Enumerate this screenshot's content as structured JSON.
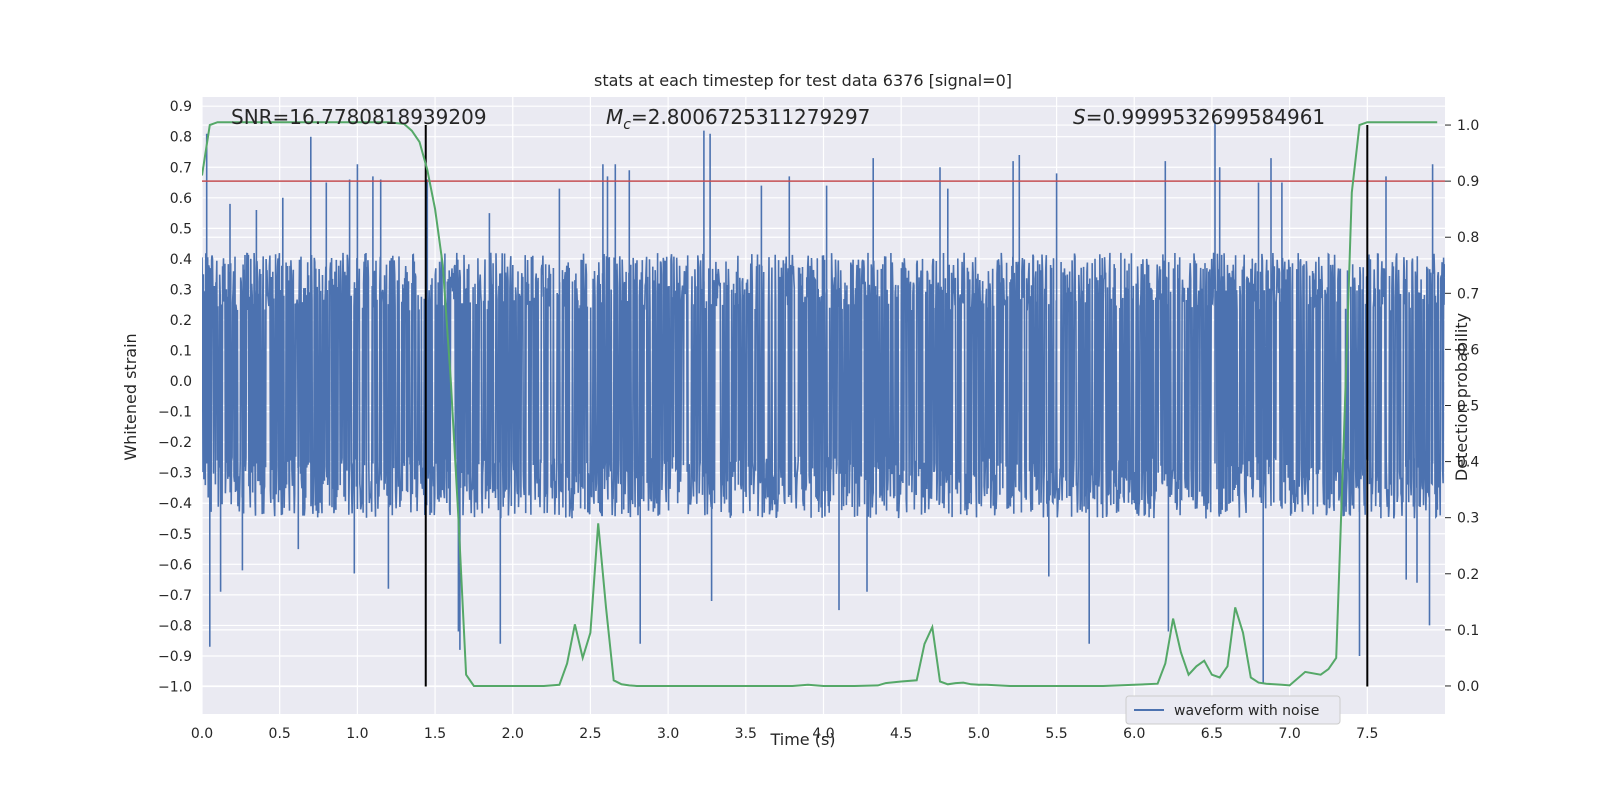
{
  "chart_data": {
    "type": "line",
    "title": "stats at each timestep for test data 6376 [signal=0]",
    "xlabel": "Time (s)",
    "ylabel_left": "Whitened strain",
    "ylabel_right": "Detection probability",
    "xlim": [
      0.0,
      8.0
    ],
    "ylim_left": [
      -1.09,
      0.93
    ],
    "ylim_right": [
      -0.05,
      1.05
    ],
    "x_ticks": [
      0.0,
      0.5,
      1.0,
      1.5,
      2.0,
      2.5,
      3.0,
      3.5,
      4.0,
      4.5,
      5.0,
      5.5,
      6.0,
      6.5,
      7.0,
      7.5
    ],
    "x_tick_labels": [
      "0.0",
      "0.5",
      "1.0",
      "1.5",
      "2.0",
      "2.5",
      "3.0",
      "3.5",
      "4.0",
      "4.5",
      "5.0",
      "5.5",
      "6.0",
      "6.5",
      "7.0",
      "7.5"
    ],
    "y_left_ticks": [
      0.9,
      0.8,
      0.7,
      0.6,
      0.5,
      0.4,
      0.3,
      0.2,
      0.1,
      0.0,
      -0.1,
      -0.2,
      -0.3,
      -0.4,
      -0.5,
      -0.6,
      -0.7,
      -0.8,
      -0.9,
      -1.0
    ],
    "y_left_tick_labels": [
      "0.9",
      "0.8",
      "0.7",
      "0.6",
      "0.5",
      "0.4",
      "0.3",
      "0.2",
      "0.1",
      "0.0",
      "−0.1",
      "−0.2",
      "−0.3",
      "−0.4",
      "−0.5",
      "−0.6",
      "−0.7",
      "−0.8",
      "−0.9",
      "−1.0"
    ],
    "y_right_ticks": [
      1.0,
      0.9,
      0.8,
      0.7,
      0.6,
      0.5,
      0.4,
      0.3,
      0.2,
      0.1,
      0.0
    ],
    "y_right_tick_labels": [
      "1.0",
      "0.9",
      "0.8",
      "0.7",
      "0.6",
      "0.5",
      "0.4",
      "0.3",
      "0.2",
      "0.1",
      "0.0"
    ],
    "annotations": {
      "snr": "SNR=16.7780818939209",
      "mc_symbol": "M",
      "mc_sub": "c",
      "mc_value": "=2.8006725311279297",
      "s_symbol": "S",
      "s_value": "=0.9999532699584961"
    },
    "threshold_right": 0.9,
    "vertical_lines_x": [
      1.44,
      7.5
    ],
    "vertical_lines_ymax_right": 1.0,
    "waveform": {
      "name": "waveform with noise",
      "envelope_upper": 0.42,
      "envelope_lower": -0.45,
      "spikes": [
        {
          "x": 0.03,
          "y": 0.81
        },
        {
          "x": 0.05,
          "y": -0.87
        },
        {
          "x": 0.12,
          "y": -0.69
        },
        {
          "x": 0.18,
          "y": 0.58
        },
        {
          "x": 0.26,
          "y": -0.62
        },
        {
          "x": 0.35,
          "y": 0.56
        },
        {
          "x": 0.52,
          "y": 0.6
        },
        {
          "x": 0.62,
          "y": -0.55
        },
        {
          "x": 0.7,
          "y": 0.8
        },
        {
          "x": 0.8,
          "y": 0.65
        },
        {
          "x": 0.95,
          "y": 0.66
        },
        {
          "x": 0.98,
          "y": -0.63
        },
        {
          "x": 1.0,
          "y": 0.71
        },
        {
          "x": 1.1,
          "y": 0.67
        },
        {
          "x": 1.15,
          "y": 0.66
        },
        {
          "x": 1.2,
          "y": -0.68
        },
        {
          "x": 1.45,
          "y": 0.66
        },
        {
          "x": 1.65,
          "y": -0.82
        },
        {
          "x": 1.66,
          "y": -0.88
        },
        {
          "x": 1.85,
          "y": 0.55
        },
        {
          "x": 1.92,
          "y": -0.86
        },
        {
          "x": 2.3,
          "y": 0.63
        },
        {
          "x": 2.58,
          "y": 0.71
        },
        {
          "x": 2.61,
          "y": 0.67
        },
        {
          "x": 2.66,
          "y": 0.71
        },
        {
          "x": 2.75,
          "y": 0.69
        },
        {
          "x": 2.82,
          "y": -0.86
        },
        {
          "x": 3.23,
          "y": 0.82
        },
        {
          "x": 3.27,
          "y": 0.81
        },
        {
          "x": 3.28,
          "y": -0.72
        },
        {
          "x": 3.6,
          "y": 0.64
        },
        {
          "x": 3.78,
          "y": 0.67
        },
        {
          "x": 4.02,
          "y": 0.64
        },
        {
          "x": 4.1,
          "y": -0.75
        },
        {
          "x": 4.28,
          "y": -0.69
        },
        {
          "x": 4.32,
          "y": 0.73
        },
        {
          "x": 4.75,
          "y": 0.7
        },
        {
          "x": 4.8,
          "y": 0.63
        },
        {
          "x": 5.22,
          "y": 0.72
        },
        {
          "x": 5.26,
          "y": 0.74
        },
        {
          "x": 5.45,
          "y": -0.64
        },
        {
          "x": 5.5,
          "y": 0.68
        },
        {
          "x": 5.71,
          "y": -0.86
        },
        {
          "x": 6.2,
          "y": 0.72
        },
        {
          "x": 6.22,
          "y": -0.82
        },
        {
          "x": 6.52,
          "y": 0.85
        },
        {
          "x": 6.55,
          "y": 0.7
        },
        {
          "x": 6.8,
          "y": 0.65
        },
        {
          "x": 6.83,
          "y": -0.99
        },
        {
          "x": 6.88,
          "y": 0.73
        },
        {
          "x": 6.95,
          "y": 0.65
        },
        {
          "x": 7.45,
          "y": -0.9
        },
        {
          "x": 7.62,
          "y": 0.67
        },
        {
          "x": 7.75,
          "y": -0.65
        },
        {
          "x": 7.82,
          "y": -0.66
        },
        {
          "x": 7.9,
          "y": -0.8
        },
        {
          "x": 7.92,
          "y": 0.71
        }
      ]
    },
    "detection_probability": {
      "x": [
        0.0,
        0.05,
        0.1,
        0.2,
        0.3,
        0.4,
        0.5,
        0.6,
        0.7,
        0.8,
        0.9,
        1.0,
        1.1,
        1.2,
        1.3,
        1.35,
        1.4,
        1.45,
        1.5,
        1.55,
        1.6,
        1.65,
        1.7,
        1.75,
        1.8,
        1.9,
        2.0,
        2.1,
        2.2,
        2.3,
        2.35,
        2.4,
        2.45,
        2.5,
        2.55,
        2.6,
        2.65,
        2.7,
        2.75,
        2.8,
        2.9,
        3.0,
        3.2,
        3.4,
        3.6,
        3.8,
        3.9,
        4.0,
        4.2,
        4.35,
        4.4,
        4.5,
        4.6,
        4.65,
        4.7,
        4.75,
        4.8,
        4.85,
        4.9,
        4.95,
        5.0,
        5.05,
        5.2,
        5.6,
        5.8,
        6.0,
        6.15,
        6.2,
        6.25,
        6.3,
        6.35,
        6.4,
        6.45,
        6.5,
        6.55,
        6.6,
        6.65,
        6.7,
        6.75,
        6.8,
        6.85,
        6.9,
        6.95,
        7.0,
        7.1,
        7.2,
        7.25,
        7.3,
        7.35,
        7.4,
        7.45,
        7.5,
        7.55,
        7.6,
        7.7,
        7.8,
        7.95
      ],
      "y": [
        0.91,
        1.0,
        1.005,
        1.005,
        1.005,
        1.005,
        1.005,
        1.005,
        1.005,
        1.005,
        1.005,
        1.005,
        1.005,
        1.005,
        1.002,
        0.99,
        0.97,
        0.92,
        0.85,
        0.75,
        0.55,
        0.3,
        0.02,
        0.0,
        0.0,
        0.0,
        0.0,
        0.0,
        0.0,
        0.002,
        0.04,
        0.11,
        0.05,
        0.095,
        0.29,
        0.14,
        0.01,
        0.003,
        0.001,
        0.0,
        0.0,
        0.0,
        0.0,
        0.0,
        0.0,
        0.0,
        0.002,
        0.0,
        0.0,
        0.001,
        0.005,
        0.008,
        0.01,
        0.075,
        0.105,
        0.008,
        0.003,
        0.005,
        0.006,
        0.003,
        0.002,
        0.002,
        0.0,
        0.0,
        0.0,
        0.002,
        0.004,
        0.04,
        0.12,
        0.06,
        0.02,
        0.035,
        0.045,
        0.02,
        0.015,
        0.035,
        0.14,
        0.095,
        0.015,
        0.006,
        0.004,
        0.003,
        0.002,
        0.001,
        0.025,
        0.02,
        0.03,
        0.05,
        0.45,
        0.88,
        1.0,
        1.005,
        1.005,
        1.005,
        1.005,
        1.005,
        1.005
      ]
    },
    "legend": {
      "entry": "waveform with noise",
      "placement": "lower-right"
    },
    "grid": true,
    "colors": {
      "background": "#eaeaf2",
      "waveform": "#4c72b0",
      "probability": "#55a868",
      "threshold": "#c44e52",
      "vline": "#000000",
      "grid": "#ffffff"
    }
  }
}
